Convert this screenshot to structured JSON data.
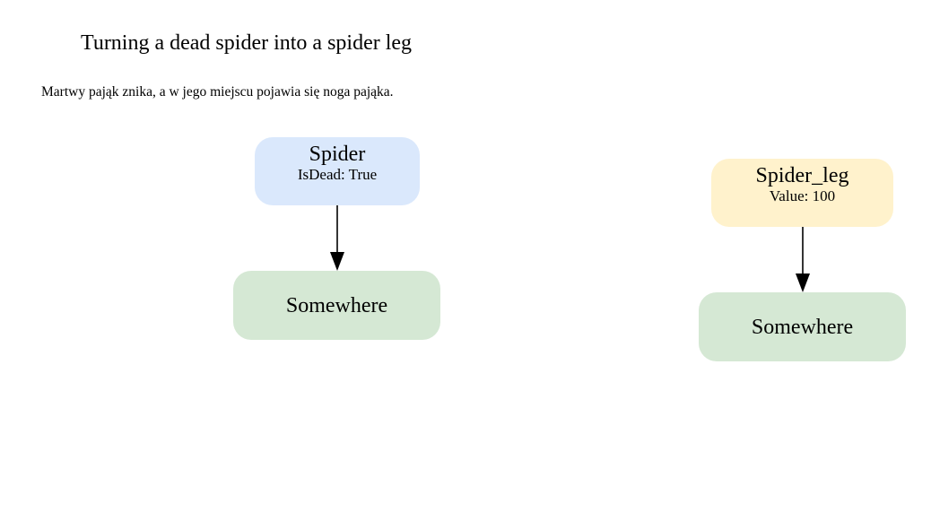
{
  "diagram": {
    "title": "Turning a dead spider into a spider leg",
    "subtitle": "Martwy pająk znika, a w jego miejscu pojawia się noga pająka.",
    "colors": {
      "spider_fill": "#dae8fc",
      "spider_leg_fill": "#fff2cc",
      "location_fill": "#d5e8d4",
      "edge": "#000000"
    },
    "nodes": {
      "spider": {
        "name": "Spider",
        "attribute": "IsDead: True"
      },
      "spider_leg": {
        "name": "Spider_leg",
        "attribute": "Value: 100"
      },
      "somewhere_left": {
        "name": "Somewhere"
      },
      "somewhere_right": {
        "name": "Somewhere"
      }
    },
    "edges": [
      {
        "from": "spider",
        "to": "somewhere_left"
      },
      {
        "from": "spider_leg",
        "to": "somewhere_right"
      }
    ]
  }
}
